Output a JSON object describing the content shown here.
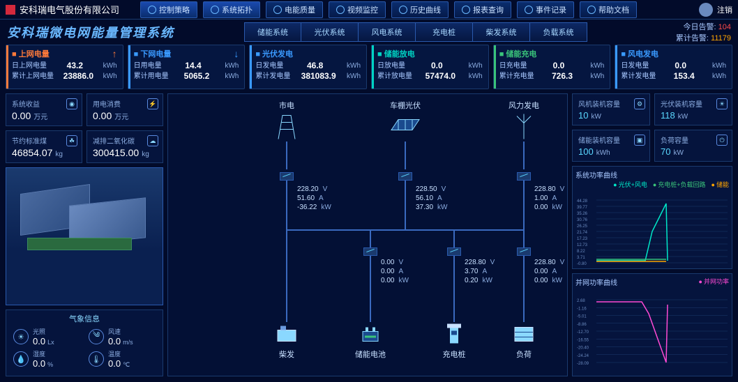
{
  "header": {
    "company": "安科瑞电气股份有限公司",
    "nav": [
      "控制策略",
      "系统拓扑",
      "电能质量",
      "视频监控",
      "历史曲线",
      "报表查询",
      "事件记录",
      "帮助文档"
    ],
    "logout": "注销"
  },
  "subhead": {
    "title": "安科瑞微电网能量管理系统",
    "tabs": [
      "储能系统",
      "光伏系统",
      "风电系统",
      "充电桩",
      "柴发系统",
      "负载系统"
    ],
    "alert_today_lbl": "今日告警:",
    "alert_today_val": "104",
    "alert_total_lbl": "累计告警:",
    "alert_total_val": "11179"
  },
  "cards": [
    {
      "color": "#ff7a3a",
      "title": "上网电量",
      "arrow": "↑",
      "r1l": "日上网电量",
      "r1v": "43.2",
      "r2l": "累计上网电量",
      "r2v": "23886.0",
      "u": "kWh"
    },
    {
      "color": "#3a9aff",
      "title": "下网电量",
      "arrow": "↓",
      "r1l": "日用电量",
      "r1v": "14.4",
      "r2l": "累计用电量",
      "r2v": "5065.2",
      "u": "kWh"
    },
    {
      "color": "#3a9aff",
      "title": "光伏发电",
      "arrow": "",
      "r1l": "日发电量",
      "r1v": "46.8",
      "r2l": "累计发电量",
      "r2v": "381083.9",
      "u": "kWh"
    },
    {
      "color": "#00d4c4",
      "title": "储能放电",
      "arrow": "",
      "r1l": "日放电量",
      "r1v": "0.0",
      "r2l": "累计放电量",
      "r2v": "57474.0",
      "u": "kWh"
    },
    {
      "color": "#3ac47a",
      "title": "储能充电",
      "arrow": "",
      "r1l": "日充电量",
      "r1v": "0.0",
      "r2l": "累计充电量",
      "r2v": "726.3",
      "u": "kWh"
    },
    {
      "color": "#3a9aff",
      "title": "风电发电",
      "arrow": "",
      "r1l": "日发电量",
      "r1v": "0.0",
      "r2l": "累计发电量",
      "r2v": "153.4",
      "u": "kWh"
    }
  ],
  "left": {
    "p1": {
      "lbl": "系统收益",
      "val": "0.00",
      "u": "万元"
    },
    "p2": {
      "lbl": "用电消费",
      "val": "0.00",
      "u": "万元"
    },
    "p3": {
      "lbl": "节约标准煤",
      "val": "46854.07",
      "u": "kg"
    },
    "p4": {
      "lbl": "减排二氧化碳",
      "val": "300415.00",
      "u": "kg"
    },
    "weather_title": "气象信息",
    "w": [
      {
        "lbl": "光照",
        "v": "0.0",
        "u": "Lx"
      },
      {
        "lbl": "风速",
        "v": "0.0",
        "u": "m/s"
      },
      {
        "lbl": "湿度",
        "v": "0.0",
        "u": "%"
      },
      {
        "lbl": "温度",
        "v": "0.0",
        "u": "℃"
      }
    ]
  },
  "right": {
    "p1": {
      "lbl": "风机装机容量",
      "val": "10",
      "u": "kW"
    },
    "p2": {
      "lbl": "光伏装机容量",
      "val": "118",
      "u": "kW"
    },
    "p3": {
      "lbl": "储能装机容量",
      "val": "100",
      "u": "kWh"
    },
    "p4": {
      "lbl": "负荷容量",
      "val": "70",
      "u": "kW"
    },
    "chart1": {
      "title": "系统功率曲线",
      "legend": [
        "光伏+风电",
        "充电桩+负载回路",
        "储能"
      ],
      "colors": [
        "#00e8c8",
        "#3ac47a",
        "#ffa500"
      ],
      "yticks": [
        "44.28",
        "39.77",
        "35.26",
        "30.76",
        "26.25",
        "21.74",
        "17.23",
        "12.73",
        "8.22",
        "3.71",
        "-0.80"
      ]
    },
    "chart2": {
      "title": "并网功率曲线",
      "legend": [
        "并网功率"
      ],
      "colors": [
        "#ff4ad4"
      ],
      "yticks": [
        "2.68",
        "-1.16",
        "-5.01",
        "-8.86",
        "-12.70",
        "-16.55",
        "-20.40",
        "-24.24",
        "-28.09"
      ]
    }
  },
  "diagram": {
    "top": [
      {
        "label": "市电",
        "x": 170
      },
      {
        "label": "车棚光伏",
        "x": 340
      },
      {
        "label": "风力发电",
        "x": 510
      }
    ],
    "bottom": [
      {
        "label": "柴发",
        "x": 170
      },
      {
        "label": "储能电池",
        "x": 290
      },
      {
        "label": "充电桩",
        "x": 410
      },
      {
        "label": "负荷",
        "x": 510
      }
    ],
    "readings_top": [
      {
        "x": 185,
        "rows": [
          [
            "228.20",
            "V"
          ],
          [
            "51.60",
            "A"
          ],
          [
            "-36.22",
            "kW"
          ]
        ]
      },
      {
        "x": 355,
        "rows": [
          [
            "228.50",
            "V"
          ],
          [
            "56.10",
            "A"
          ],
          [
            "37.30",
            "kW"
          ]
        ]
      },
      {
        "x": 525,
        "rows": [
          [
            "228.80",
            "V"
          ],
          [
            "1.00",
            "A"
          ],
          [
            "0.00",
            "kW"
          ]
        ]
      }
    ],
    "readings_bot": [
      {
        "x": 305,
        "rows": [
          [
            "0.00",
            "V"
          ],
          [
            "0.00",
            "A"
          ],
          [
            "0.00",
            "kW"
          ]
        ]
      },
      {
        "x": 425,
        "rows": [
          [
            "228.80",
            "V"
          ],
          [
            "3.70",
            "A"
          ],
          [
            "0.20",
            "kW"
          ]
        ]
      },
      {
        "x": 525,
        "rows": [
          [
            "228.80",
            "V"
          ],
          [
            "0.00",
            "A"
          ],
          [
            "0.00",
            "kW"
          ]
        ]
      }
    ]
  }
}
